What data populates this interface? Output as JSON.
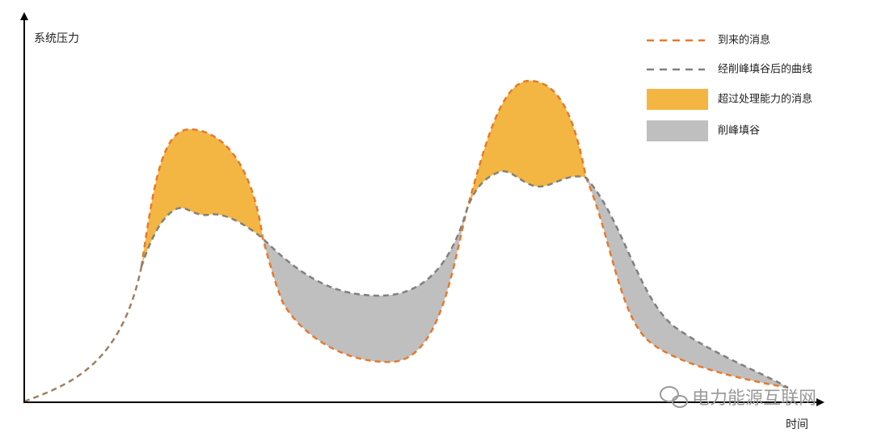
{
  "axes": {
    "y_label": "系统压力",
    "x_label": "时间"
  },
  "legend": [
    "到来的消息",
    "经削峰填谷后的曲线",
    "超过处理能力的消息",
    "削峰填谷"
  ],
  "watermark": "电力能源互联网"
}
